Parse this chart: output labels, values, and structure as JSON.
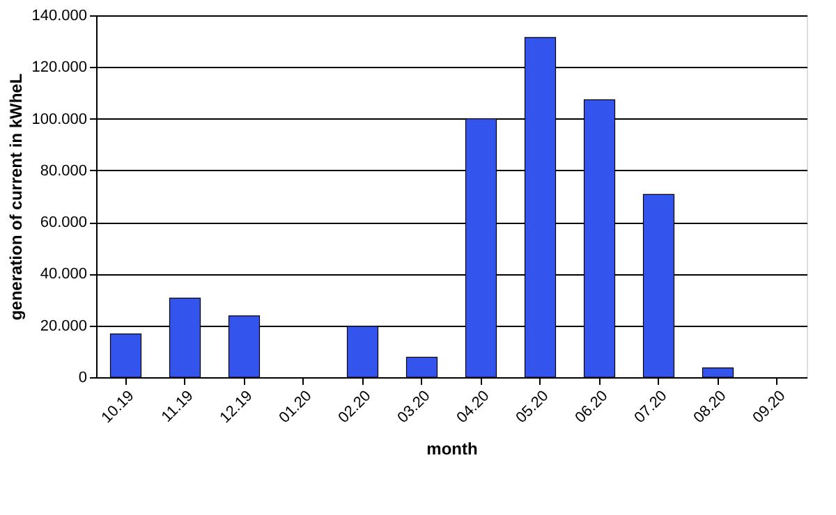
{
  "chart_data": {
    "type": "bar",
    "xlabel": "month",
    "ylabel": "generation of current in kWheL",
    "categories": [
      "10.19",
      "11.19",
      "12.19",
      "01.20",
      "02.20",
      "03.20",
      "04.20",
      "05.20",
      "06.20",
      "07.20",
      "08.20",
      "09.20"
    ],
    "values": [
      16.7,
      30.6,
      23.7,
      0,
      19.7,
      7.7,
      100.0,
      131.4,
      107.3,
      70.7,
      3.6,
      0
    ],
    "color": "#3355ee",
    "ylim": [
      0,
      140
    ],
    "yticks": [
      0,
      {
        "value": 20,
        "label": "20.000"
      },
      {
        "value": 40,
        "label": "40.000"
      },
      {
        "value": 60,
        "label": "60.000"
      },
      {
        "value": 80,
        "label": "80.000"
      },
      {
        "value": 100,
        "label": "100.000"
      },
      {
        "value": 120,
        "label": "120.000"
      },
      {
        "value": 140,
        "label": "140.000"
      }
    ],
    "grid": "y"
  }
}
